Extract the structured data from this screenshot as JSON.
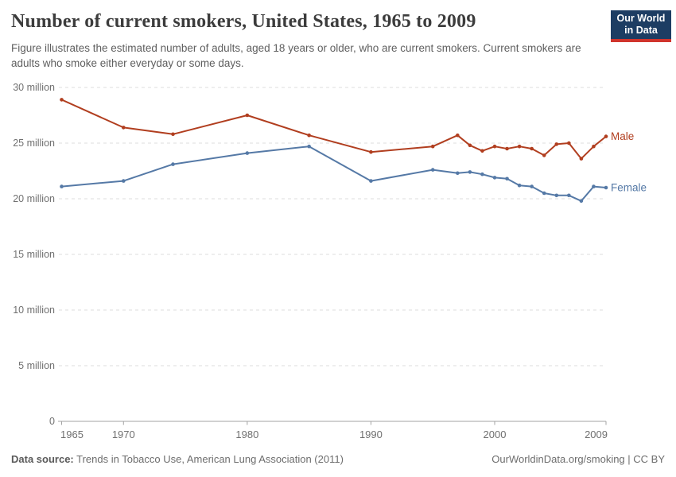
{
  "header": {
    "title": "Number of current smokers, United States, 1965 to 2009",
    "subtitle": "Figure illustrates the estimated number of adults, aged 18 years or older, who are current smokers. Current smokers are adults who smoke either everyday or some days.",
    "logo": {
      "line1": "Our World",
      "line2": "in Data",
      "bg_color": "#1d3d63",
      "accent_color": "#d0342c"
    }
  },
  "footer": {
    "source_label": "Data source:",
    "source_value": " Trends in Tobacco Use, American Lung Association (2011)",
    "attribution": "OurWorldinData.org/smoking | CC BY"
  },
  "chart_data": {
    "type": "line",
    "title": "Number of current smokers, United States, 1965 to 2009",
    "xlabel": "",
    "ylabel": "",
    "units": "million",
    "grid": true,
    "legend_position": "end-of-line",
    "xlim": [
      1965,
      2009
    ],
    "ylim": [
      0,
      30
    ],
    "x": [
      1965,
      1970,
      1974,
      1980,
      1985,
      1990,
      1995,
      1997,
      1998,
      1999,
      2000,
      2001,
      2002,
      2003,
      2004,
      2005,
      2006,
      2007,
      2008,
      2009
    ],
    "series": [
      {
        "name": "Male",
        "color": "#b13e1f",
        "values": [
          28.9,
          26.4,
          25.8,
          27.5,
          25.7,
          24.2,
          24.7,
          25.7,
          24.8,
          24.3,
          24.7,
          24.5,
          24.7,
          24.5,
          23.9,
          24.9,
          25.0,
          23.6,
          24.7,
          25.6
        ]
      },
      {
        "name": "Female",
        "color": "#5579a6",
        "values": [
          21.1,
          21.6,
          23.1,
          24.1,
          24.7,
          21.6,
          22.6,
          22.3,
          22.4,
          22.2,
          21.9,
          21.8,
          21.2,
          21.1,
          20.5,
          20.3,
          20.3,
          19.8,
          21.1,
          21.0
        ]
      }
    ],
    "yticks": [
      {
        "value": 0,
        "label": "0"
      },
      {
        "value": 5,
        "label": "5 million"
      },
      {
        "value": 10,
        "label": "10 million"
      },
      {
        "value": 15,
        "label": "15 million"
      },
      {
        "value": 20,
        "label": "20 million"
      },
      {
        "value": 25,
        "label": "25 million"
      },
      {
        "value": 30,
        "label": "30 million"
      }
    ],
    "xticks": [
      {
        "value": 1965,
        "label": "1965"
      },
      {
        "value": 1970,
        "label": "1970"
      },
      {
        "value": 1980,
        "label": "1980"
      },
      {
        "value": 1990,
        "label": "1990"
      },
      {
        "value": 2000,
        "label": "2000"
      },
      {
        "value": 2009,
        "label": "2009"
      }
    ],
    "colors": {
      "gridline": "#dcdcdc",
      "axis": "#a3a3a3",
      "tick_label": "#707070"
    }
  }
}
